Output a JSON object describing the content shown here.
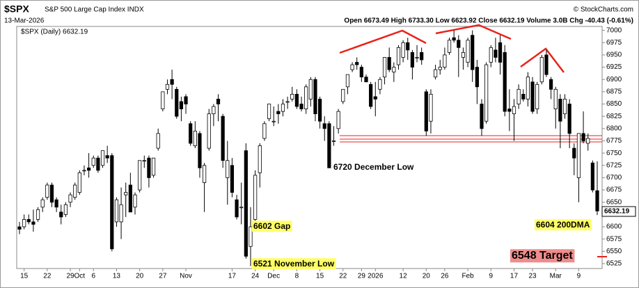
{
  "chart_data": {
    "type": "candlestick",
    "symbol": "$SPX",
    "name": "S&P 500 Large Cap Index INDX",
    "date": "13-Mar-2026",
    "quote": "Open 6673.49  High 6733.30  Low 6623.92  Close 6632.19  Volume 3.0B  Chg -40.43 (-0.61%)",
    "credit": "© StockCharts.com",
    "legend": "$SPX (Daily) 6632.19",
    "last_price_label": "6632.19",
    "color": "#000000",
    "grid": false,
    "annotations": [
      "6720 December Low",
      "6602 Gap",
      "6521 November Low",
      "6604 200DMA",
      "6548 Target"
    ],
    "categories": [
      null,
      "15",
      null,
      null,
      null,
      null,
      "22",
      null,
      null,
      null,
      null,
      "29",
      null,
      "Oct",
      null,
      null,
      "6",
      null,
      null,
      null,
      null,
      "13",
      null,
      null,
      null,
      null,
      "20",
      null,
      null,
      null,
      null,
      "27",
      null,
      null,
      null,
      null,
      "Nov",
      null,
      null,
      null,
      null,
      null,
      null,
      null,
      null,
      null,
      "17",
      null,
      null,
      null,
      null,
      "24",
      null,
      null,
      null,
      "Dec",
      null,
      null,
      null,
      null,
      "8",
      null,
      null,
      null,
      null,
      "15",
      null,
      null,
      null,
      null,
      "22",
      null,
      null,
      null,
      "29",
      null,
      null,
      "2026",
      null,
      null,
      null,
      null,
      null,
      "12",
      null,
      null,
      null,
      null,
      "20",
      null,
      null,
      null,
      "26",
      null,
      null,
      null,
      null,
      "Feb",
      null,
      null,
      null,
      null,
      "9",
      null,
      null,
      null,
      null,
      "17",
      null,
      null,
      null,
      "23",
      null,
      null,
      null,
      null,
      "Mar",
      null,
      null,
      null,
      null,
      "9",
      null,
      null,
      null,
      null
    ],
    "open": [
      6600,
      6600,
      6615,
      6610,
      6615,
      6640,
      6660,
      6685,
      6655,
      6630,
      6625,
      6650,
      6660,
      6670,
      6715,
      6720,
      6725,
      6740,
      6725,
      6745,
      6745,
      6610,
      6610,
      6665,
      6685,
      6640,
      6675,
      6735,
      6740,
      6705,
      6760,
      6840,
      6880,
      6900,
      6880,
      6855,
      6865,
      6810,
      6765,
      6790,
      6690,
      6760,
      6830,
      6860,
      6825,
      6700,
      6725,
      6655,
      6640,
      6755,
      6560,
      6615,
      6710,
      6780,
      6820,
      6815,
      6835,
      6835,
      6855,
      6860,
      6870,
      6850,
      6840,
      6860,
      6900,
      6860,
      6810,
      6810,
      6775,
      6800,
      6855,
      6885,
      6920,
      6935,
      6925,
      6905,
      6890,
      6865,
      6880,
      6905,
      6945,
      6915,
      6930,
      6945,
      6975,
      6955,
      6945,
      6955,
      6875,
      6815,
      6905,
      6920,
      6925,
      6955,
      6985,
      6980,
      6945,
      6935,
      6990,
      6925,
      6850,
      6815,
      6935,
      6960,
      6975,
      6955,
      6840,
      6830,
      6850,
      6870,
      6860,
      6895,
      6840,
      6895,
      6950,
      6900,
      6840,
      6860,
      6830,
      6850,
      6760,
      6700,
      6790,
      6770,
      6730,
      6673.49
    ],
    "high": [
      6610,
      6625,
      6625,
      6635,
      6640,
      6660,
      6690,
      6690,
      6660,
      6645,
      6650,
      6670,
      6690,
      6715,
      6725,
      6750,
      6745,
      6745,
      6755,
      6765,
      6750,
      6660,
      6680,
      6690,
      6710,
      6670,
      6735,
      6745,
      6745,
      6740,
      6800,
      6875,
      6900,
      6920,
      6885,
      6865,
      6870,
      6815,
      6815,
      6795,
      6730,
      6840,
      6850,
      6870,
      6830,
      6775,
      6740,
      6665,
      6690,
      6770,
      6640,
      6715,
      6770,
      6815,
      6850,
      6845,
      6850,
      6860,
      6865,
      6885,
      6880,
      6865,
      6890,
      6905,
      6905,
      6865,
      6825,
      6815,
      6805,
      6840,
      6880,
      6910,
      6935,
      6945,
      6930,
      6910,
      6895,
      6895,
      6905,
      6945,
      6965,
      6935,
      6970,
      6980,
      6985,
      6960,
      6970,
      6965,
      6880,
      6880,
      6930,
      6940,
      6965,
      6985,
      7000,
      6990,
      6965,
      6985,
      7000,
      6940,
      6860,
      6935,
      6970,
      6985,
      6990,
      6970,
      6880,
      6860,
      6890,
      6880,
      6915,
      6905,
      6895,
      6950,
      6960,
      6905,
      6885,
      6870,
      6870,
      6860,
      6770,
      6790,
      6835,
      6790,
      6735,
      6733.3
    ],
    "low": [
      6585,
      6595,
      6605,
      6590,
      6610,
      6630,
      6655,
      6640,
      6630,
      6605,
      6620,
      6640,
      6655,
      6665,
      6705,
      6700,
      6720,
      6710,
      6720,
      6730,
      6550,
      6600,
      6575,
      6620,
      6630,
      6625,
      6670,
      6720,
      6680,
      6700,
      6755,
      6835,
      6870,
      6860,
      6820,
      6815,
      6830,
      6765,
      6760,
      6700,
      6630,
      6755,
      6805,
      6815,
      6720,
      6645,
      6660,
      6615,
      6605,
      6535,
      6520,
      6610,
      6680,
      6775,
      6815,
      6805,
      6810,
      6825,
      6840,
      6855,
      6840,
      6835,
      6830,
      6845,
      6815,
      6800,
      6775,
      6720,
      6765,
      6790,
      6850,
      6870,
      6915,
      6920,
      6895,
      6895,
      6840,
      6825,
      6870,
      6890,
      6915,
      6895,
      6920,
      6935,
      6940,
      6900,
      6935,
      6930,
      6785,
      6790,
      6900,
      6910,
      6920,
      6950,
      6975,
      6905,
      6920,
      6925,
      6895,
      6850,
      6785,
      6810,
      6925,
      6935,
      6910,
      6825,
      6795,
      6775,
      6840,
      6855,
      6845,
      6830,
      6830,
      6890,
      6905,
      6860,
      6800,
      6760,
      6820,
      6760,
      6705,
      6650,
      6770,
      6755,
      6670,
      6623.92
    ],
    "close": [
      6595,
      6615,
      6610,
      6605,
      6635,
      6655,
      6685,
      6650,
      6640,
      6620,
      6645,
      6665,
      6685,
      6710,
      6715,
      6715,
      6740,
      6715,
      6755,
      6740,
      6555,
      6655,
      6645,
      6670,
      6630,
      6665,
      6735,
      6735,
      6700,
      6740,
      6790,
      6875,
      6890,
      6890,
      6825,
      6840,
      6850,
      6770,
      6795,
      6720,
      6725,
      6830,
      6845,
      6850,
      6735,
      6735,
      6670,
      6620,
      6640,
      6540,
      6600,
      6705,
      6765,
      6810,
      6850,
      6815,
      6830,
      6850,
      6855,
      6870,
      6845,
      6840,
      6885,
      6900,
      6830,
      6815,
      6800,
      6720,
      6775,
      6835,
      6880,
      6910,
      6930,
      6930,
      6905,
      6895,
      6845,
      6860,
      6900,
      6945,
      6920,
      6925,
      6965,
      6975,
      6960,
      6925,
      6945,
      6940,
      6795,
      6870,
      6920,
      6925,
      6950,
      6980,
      6980,
      6965,
      6955,
      6980,
      6920,
      6885,
      6800,
      6930,
      6965,
      6945,
      6935,
      6835,
      6835,
      6845,
      6880,
      6860,
      6905,
      6835,
      6890,
      6945,
      6910,
      6880,
      6880,
      6815,
      6860,
      6790,
      6740,
      6790,
      6775,
      6780,
      6675,
      6632.19
    ],
    "ylim": [
      6515,
      7008
    ],
    "yticks": [
      6525,
      6550,
      6575,
      6600,
      6625,
      6650,
      6675,
      6700,
      6725,
      6750,
      6775,
      6800,
      6825,
      6850,
      6875,
      6900,
      6925,
      6950,
      6975,
      7000
    ]
  }
}
